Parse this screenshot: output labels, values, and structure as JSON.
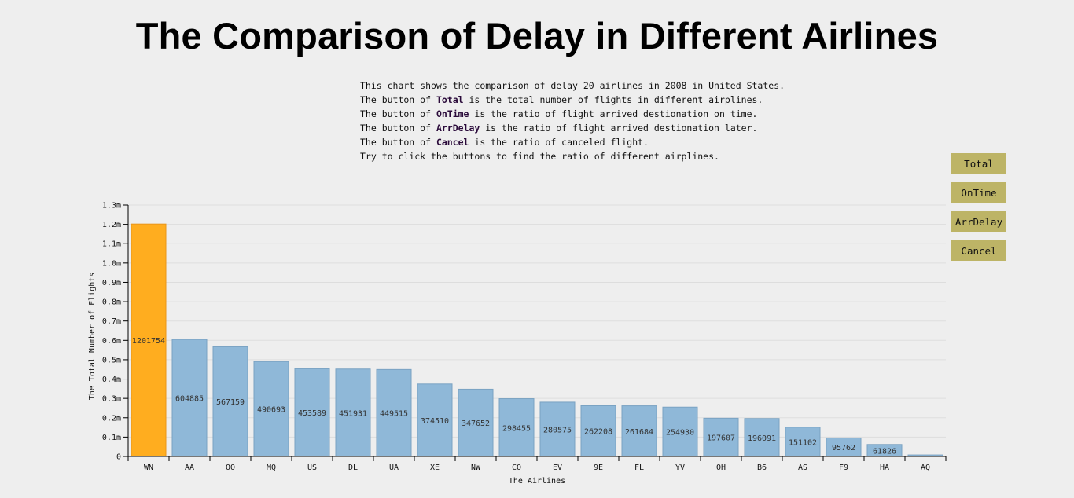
{
  "page": {
    "title": "The Comparison of Delay in Different Airlines",
    "description": [
      {
        "pre": "This chart shows the comparison of delay 20 airlines in 2008 in United States.",
        "bold": "",
        "post": ""
      },
      {
        "pre": "The button of ",
        "bold": "Total",
        "post": " is the total number of flights in different airplines."
      },
      {
        "pre": "The button of ",
        "bold": "OnTime",
        "post": " is the ratio of flight arrived destionation on time."
      },
      {
        "pre": "The button of ",
        "bold": "ArrDelay",
        "post": " is the ratio of flight arrived destionation later."
      },
      {
        "pre": "The button of ",
        "bold": "Cancel",
        "post": " is the ratio of canceled flight."
      },
      {
        "pre": "Try to click the buttons to find the ratio of different airplines.",
        "bold": "",
        "post": ""
      }
    ],
    "buttons": [
      "Total",
      "OnTime",
      "ArrDelay",
      "Cancel"
    ]
  },
  "chart_data": {
    "type": "bar",
    "title": "",
    "xlabel": "The Airlines",
    "ylabel": "The Total Number of Flights",
    "ylim": [
      0,
      1300000
    ],
    "yticks": [
      0,
      100000,
      200000,
      300000,
      400000,
      500000,
      600000,
      700000,
      800000,
      900000,
      1000000,
      1100000,
      1200000,
      1300000
    ],
    "ytick_labels": [
      "0",
      "0.1m",
      "0.2m",
      "0.3m",
      "0.4m",
      "0.5m",
      "0.6m",
      "0.7m",
      "0.8m",
      "0.9m",
      "1.0m",
      "1.1m",
      "1.2m",
      "1.3m"
    ],
    "grid": true,
    "categories": [
      "WN",
      "AA",
      "OO",
      "MQ",
      "US",
      "DL",
      "UA",
      "XE",
      "NW",
      "CO",
      "EV",
      "9E",
      "FL",
      "YV",
      "OH",
      "B6",
      "AS",
      "F9",
      "HA",
      "AQ"
    ],
    "values": [
      1201754,
      604885,
      567159,
      490693,
      453589,
      451931,
      449515,
      374510,
      347652,
      298455,
      280575,
      262208,
      261684,
      254930,
      197607,
      196091,
      151102,
      95762,
      61826,
      7800
    ],
    "value_labels": [
      "1201754",
      "604885",
      "567159",
      "490693",
      "453589",
      "451931",
      "449515",
      "374510",
      "347652",
      "298455",
      "280575",
      "262208",
      "261684",
      "254930",
      "197607",
      "196091",
      "151102",
      "95762",
      "61826",
      ""
    ],
    "highlight_index": 0,
    "colors": {
      "bar": "#8fb8d8",
      "bar_stroke": "#7aa2c2",
      "highlight": "#ffad1f",
      "highlight_stroke": "#e8951a",
      "grid": "#dddddd",
      "axis": "#000000"
    }
  }
}
